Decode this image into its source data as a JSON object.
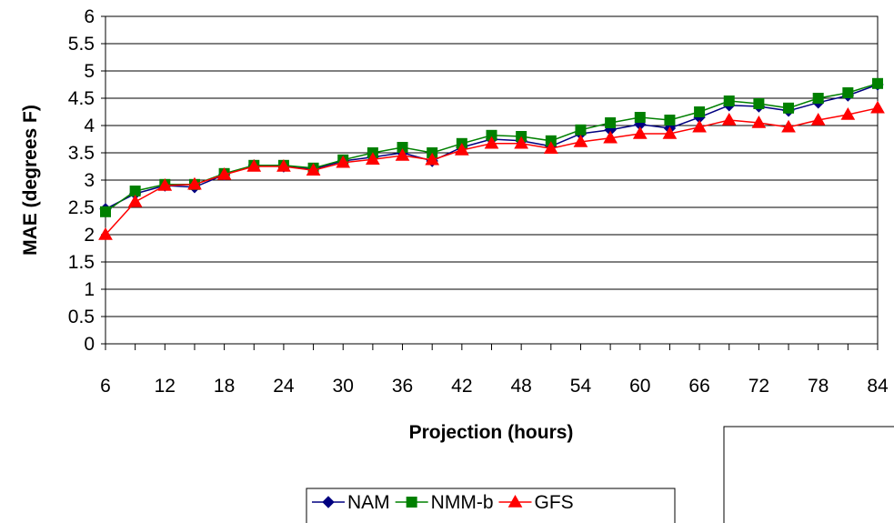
{
  "chart_data": {
    "type": "line",
    "title": "",
    "xlabel": "Projection (hours)",
    "ylabel": "MAE (degrees F)",
    "x": [
      6,
      9,
      12,
      15,
      18,
      21,
      24,
      27,
      30,
      33,
      36,
      39,
      42,
      45,
      48,
      51,
      54,
      57,
      60,
      63,
      66,
      69,
      72,
      75,
      78,
      81,
      84
    ],
    "x_tick_labels": [
      "6",
      "12",
      "18",
      "24",
      "30",
      "36",
      "42",
      "48",
      "54",
      "60",
      "66",
      "72",
      "78",
      "84"
    ],
    "y_tick_labels": [
      "0",
      "0.5",
      "1",
      "1.5",
      "2",
      "2.5",
      "3",
      "3.5",
      "4",
      "4.5",
      "5",
      "5.5",
      "6"
    ],
    "xlim": [
      6,
      84
    ],
    "ylim": [
      0,
      6
    ],
    "grid": "horizontal",
    "legend_position": "bottom",
    "series": [
      {
        "name": "NAM",
        "color": "#000080",
        "marker": "diamond",
        "values": [
          2.47,
          2.75,
          2.9,
          2.87,
          3.1,
          3.27,
          3.25,
          3.2,
          3.35,
          3.42,
          3.5,
          3.35,
          3.6,
          3.75,
          3.72,
          3.62,
          3.85,
          3.92,
          4.02,
          3.95,
          4.15,
          4.37,
          4.35,
          4.27,
          4.42,
          4.55,
          4.75
        ]
      },
      {
        "name": "NMM-b",
        "color": "#008000",
        "marker": "square",
        "values": [
          2.42,
          2.8,
          2.92,
          2.92,
          3.12,
          3.27,
          3.27,
          3.22,
          3.37,
          3.5,
          3.6,
          3.5,
          3.67,
          3.82,
          3.8,
          3.72,
          3.92,
          4.05,
          4.15,
          4.1,
          4.25,
          4.45,
          4.4,
          4.32,
          4.5,
          4.6,
          4.77
        ]
      },
      {
        "name": "GFS",
        "color": "#ff0000",
        "marker": "triangle",
        "values": [
          2.0,
          2.6,
          2.9,
          2.92,
          3.1,
          3.25,
          3.25,
          3.18,
          3.32,
          3.38,
          3.45,
          3.37,
          3.55,
          3.67,
          3.67,
          3.58,
          3.7,
          3.77,
          3.85,
          3.85,
          3.97,
          4.1,
          4.05,
          3.97,
          4.1,
          4.2,
          4.32
        ]
      }
    ]
  }
}
